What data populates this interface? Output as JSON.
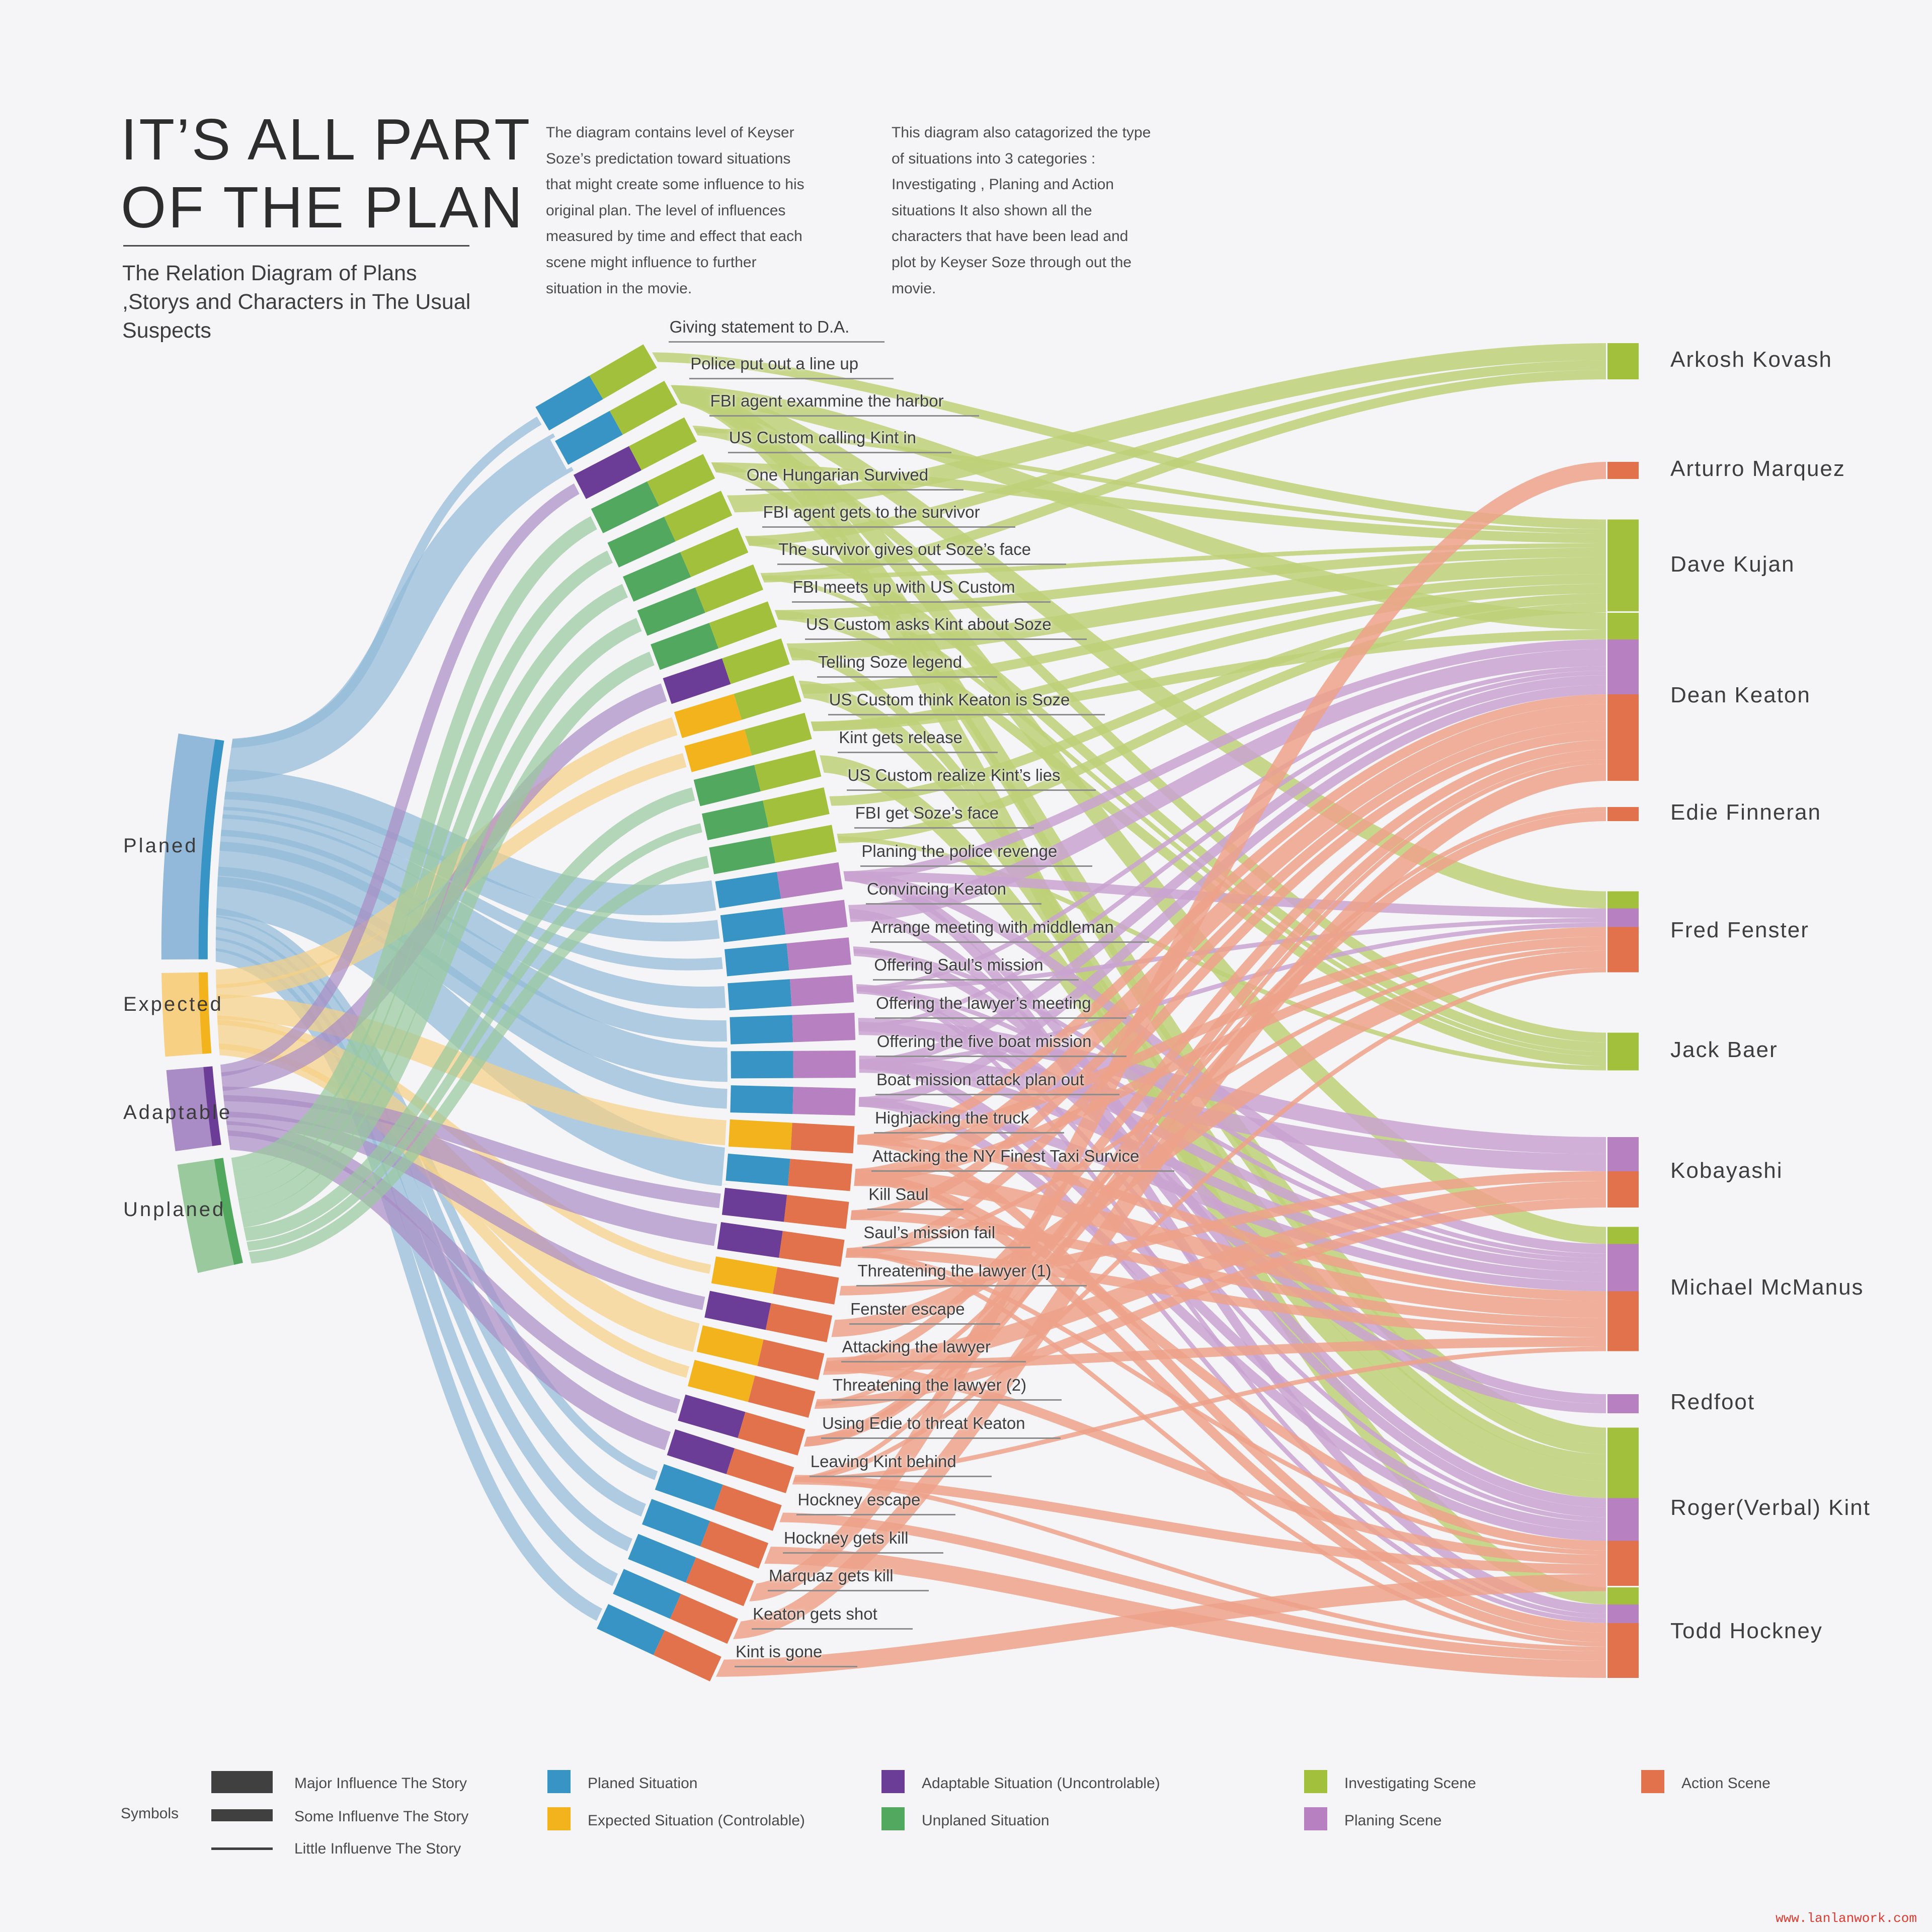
{
  "title": {
    "line1": "IT’S ALL PART",
    "line2": "OF THE PLAN"
  },
  "subtitle": "The Relation Diagram of Plans ,Storys and Characters in The Usual Suspects",
  "intro_paragraphs": [
    "The diagram contains level of Keyser Soze’s predictation toward situations that might create some influence to his original plan. The level of influences measured by time and effect that each scene might influence to further situation in the movie.",
    "This diagram also catagorized the type of situations into 3 categories : Investigating , Planing and Action situations It also shown all the characters that have been lead and plot by Keyser Soze through out the movie."
  ],
  "watermark": "www.lanlanwork.com",
  "legend": {
    "symbols_label": "Symbols"
  },
  "influence_levels": [
    {
      "id": "major",
      "label": "Major Influence The Story"
    },
    {
      "id": "some",
      "label": "Some Influenve The Story"
    },
    {
      "id": "little",
      "label": "Little Influenve  The Story"
    }
  ],
  "plans": [
    {
      "id": "planed",
      "label": "Planed",
      "legend_label": "Planed Situation",
      "color": "#3794c4",
      "flow": "#92b9d9",
      "accent": "#1f7fae"
    },
    {
      "id": "expected",
      "label": "Expected",
      "legend_label": "Expected Situation (Controlable)",
      "color": "#f3b31c",
      "flow": "#f7d084",
      "accent": "#e09c0a"
    },
    {
      "id": "adaptable",
      "label": "Adaptable",
      "legend_label": "Adaptable Situation (Uncontrolable)",
      "color": "#6b3d97",
      "flow": "#a98cc5",
      "accent": "#542e7d"
    },
    {
      "id": "unplaned",
      "label": "Unplaned",
      "legend_label": "Unplaned Situation",
      "color": "#53a85f",
      "flow": "#99c99d",
      "accent": "#3f8f4a"
    }
  ],
  "scene_types": [
    {
      "id": "investigating",
      "legend_label": "Investigating Scene",
      "color": "#a3c03d",
      "flow": "#bdd178"
    },
    {
      "id": "planing",
      "legend_label": "Planing Scene",
      "color": "#b780c1",
      "flow": "#caa3d1"
    },
    {
      "id": "action",
      "legend_label": "Action Scene",
      "color": "#e2724b",
      "flow": "#eda289"
    }
  ],
  "characters": [
    {
      "name": "Arkosh Kovash"
    },
    {
      "name": "Arturro Marquez"
    },
    {
      "name": "Dave Kujan"
    },
    {
      "name": "Dean Keaton"
    },
    {
      "name": "Edie Finneran"
    },
    {
      "name": "Fred Fenster"
    },
    {
      "name": "Jack Baer"
    },
    {
      "name": "Kobayashi"
    },
    {
      "name": "Michael McManus"
    },
    {
      "name": "Redfoot"
    },
    {
      "name": "Roger(Verbal) Kint"
    },
    {
      "name": "Todd Hockney"
    }
  ],
  "scenes": [
    {
      "label": "Giving statement to D.A.",
      "plan": "planed",
      "type": "investigating",
      "links": [
        {
          "to": "Dave Kujan",
          "weight": "some"
        }
      ]
    },
    {
      "label": "Police put out a line up",
      "plan": "planed",
      "type": "investigating",
      "links": [
        {
          "to": "Dean Keaton",
          "weight": "major"
        },
        {
          "to": "Michael McManus",
          "weight": "major"
        },
        {
          "to": "Fred Fenster",
          "weight": "major"
        },
        {
          "to": "Todd Hockney",
          "weight": "major"
        },
        {
          "to": "Roger(Verbal) Kint",
          "weight": "major"
        }
      ]
    },
    {
      "label": "FBI agent exammine the harbor",
      "plan": "adaptable",
      "type": "investigating",
      "links": [
        {
          "to": "Jack Baer",
          "weight": "some"
        },
        {
          "to": "Dave Kujan",
          "weight": "little"
        }
      ]
    },
    {
      "label": "US Custom calling Kint in",
      "plan": "unplaned",
      "type": "investigating",
      "links": [
        {
          "to": "Dave Kujan",
          "weight": "some"
        },
        {
          "to": "Roger(Verbal) Kint",
          "weight": "some"
        }
      ]
    },
    {
      "label": "One Hungarian Survived",
      "plan": "unplaned",
      "type": "investigating",
      "links": [
        {
          "to": "Arkosh Kovash",
          "weight": "major"
        }
      ]
    },
    {
      "label": "FBI agent gets to the survivor",
      "plan": "unplaned",
      "type": "investigating",
      "links": [
        {
          "to": "Arkosh Kovash",
          "weight": "some"
        },
        {
          "to": "Jack Baer",
          "weight": "some"
        }
      ]
    },
    {
      "label": "The survivor gives out Soze’s face",
      "plan": "unplaned",
      "type": "investigating",
      "links": [
        {
          "to": "Arkosh Kovash",
          "weight": "some"
        },
        {
          "to": "Dave Kujan",
          "weight": "little"
        },
        {
          "to": "Jack Baer",
          "weight": "little"
        }
      ]
    },
    {
      "label": "FBI meets up with US Custom",
      "plan": "unplaned",
      "type": "investigating",
      "links": [
        {
          "to": "Dave Kujan",
          "weight": "some"
        },
        {
          "to": "Jack Baer",
          "weight": "some"
        }
      ]
    },
    {
      "label": "US Custom asks Kint about Soze",
      "plan": "adaptable",
      "type": "investigating",
      "links": [
        {
          "to": "Dave Kujan",
          "weight": "major"
        },
        {
          "to": "Roger(Verbal) Kint",
          "weight": "some"
        }
      ]
    },
    {
      "label": "Telling Soze legend",
      "plan": "expected",
      "type": "investigating",
      "links": [
        {
          "to": "Dave Kujan",
          "weight": "some"
        },
        {
          "to": "Roger(Verbal) Kint",
          "weight": "major"
        }
      ]
    },
    {
      "label": "US Custom think Keaton is Soze",
      "plan": "expected",
      "type": "investigating",
      "links": [
        {
          "to": "Dave Kujan",
          "weight": "some"
        },
        {
          "to": "Dean Keaton",
          "weight": "some"
        }
      ]
    },
    {
      "label": "Kint gets release",
      "plan": "unplaned",
      "type": "investigating",
      "links": [
        {
          "to": "Roger(Verbal) Kint",
          "weight": "major"
        }
      ]
    },
    {
      "label": "US Custom realize Kint’s lies",
      "plan": "unplaned",
      "type": "investigating",
      "links": [
        {
          "to": "Dave Kujan",
          "weight": "some"
        }
      ]
    },
    {
      "label": "FBI get Soze’s face",
      "plan": "unplaned",
      "type": "investigating",
      "links": [
        {
          "to": "Dave Kujan",
          "weight": "some"
        },
        {
          "to": "Jack Baer",
          "weight": "little"
        }
      ]
    },
    {
      "label": "Planing the police revenge",
      "plan": "planed",
      "type": "planing",
      "links": [
        {
          "to": "Dean Keaton",
          "weight": "some"
        },
        {
          "to": "Michael McManus",
          "weight": "some"
        },
        {
          "to": "Fred Fenster",
          "weight": "some"
        },
        {
          "to": "Todd Hockney",
          "weight": "some"
        },
        {
          "to": "Roger(Verbal) Kint",
          "weight": "some"
        }
      ]
    },
    {
      "label": "Convincing Keaton",
      "plan": "planed",
      "type": "planing",
      "links": [
        {
          "to": "Dean Keaton",
          "weight": "major"
        },
        {
          "to": "Roger(Verbal) Kint",
          "weight": "some"
        }
      ]
    },
    {
      "label": "Arrange meeting with middleman",
      "plan": "planed",
      "type": "planing",
      "links": [
        {
          "to": "Redfoot",
          "weight": "some"
        },
        {
          "to": "Michael McManus",
          "weight": "little"
        }
      ]
    },
    {
      "label": "Offering Saul’s mission",
      "plan": "planed",
      "type": "planing",
      "links": [
        {
          "to": "Redfoot",
          "weight": "some"
        },
        {
          "to": "Dean Keaton",
          "weight": "little"
        },
        {
          "to": "Michael McManus",
          "weight": "little"
        },
        {
          "to": "Fred Fenster",
          "weight": "little"
        },
        {
          "to": "Todd Hockney",
          "weight": "little"
        },
        {
          "to": "Roger(Verbal) Kint",
          "weight": "little"
        }
      ]
    },
    {
      "label": "Offering the lawyer’s meeting",
      "plan": "planed",
      "type": "planing",
      "links": [
        {
          "to": "Kobayashi",
          "weight": "major"
        },
        {
          "to": "Dean Keaton",
          "weight": "little"
        },
        {
          "to": "Michael McManus",
          "weight": "some"
        }
      ]
    },
    {
      "label": "Offering the five boat mission",
      "plan": "planed",
      "type": "planing",
      "links": [
        {
          "to": "Kobayashi",
          "weight": "major"
        },
        {
          "to": "Dean Keaton",
          "weight": "some"
        },
        {
          "to": "Michael McManus",
          "weight": "some"
        },
        {
          "to": "Fred Fenster",
          "weight": "little"
        },
        {
          "to": "Todd Hockney",
          "weight": "little"
        },
        {
          "to": "Roger(Verbal) Kint",
          "weight": "some"
        }
      ]
    },
    {
      "label": "Boat mission attack plan out",
      "plan": "planed",
      "type": "planing",
      "links": [
        {
          "to": "Dean Keaton",
          "weight": "some"
        },
        {
          "to": "Michael McManus",
          "weight": "some"
        },
        {
          "to": "Roger(Verbal) Kint",
          "weight": "some"
        }
      ]
    },
    {
      "label": "Highjacking the truck",
      "plan": "expected",
      "type": "action",
      "links": [
        {
          "to": "Dean Keaton",
          "weight": "some"
        },
        {
          "to": "Michael McManus",
          "weight": "some"
        },
        {
          "to": "Fred Fenster",
          "weight": "some"
        },
        {
          "to": "Todd Hockney",
          "weight": "some"
        }
      ]
    },
    {
      "label": "Attacking the NY Finest Taxi Survice",
      "plan": "planed",
      "type": "action",
      "links": [
        {
          "to": "Dean Keaton",
          "weight": "major"
        },
        {
          "to": "Michael McManus",
          "weight": "major"
        },
        {
          "to": "Fred Fenster",
          "weight": "some"
        },
        {
          "to": "Todd Hockney",
          "weight": "some"
        },
        {
          "to": "Roger(Verbal) Kint",
          "weight": "some"
        }
      ]
    },
    {
      "label": "Kill Saul",
      "plan": "adaptable",
      "type": "action",
      "links": [
        {
          "to": "Michael McManus",
          "weight": "some"
        },
        {
          "to": "Dean Keaton",
          "weight": "some"
        }
      ]
    },
    {
      "label": "Saul’s mission fail",
      "plan": "adaptable",
      "type": "action",
      "links": [
        {
          "to": "Dean Keaton",
          "weight": "some"
        },
        {
          "to": "Michael McManus",
          "weight": "some"
        },
        {
          "to": "Fred Fenster",
          "weight": "little"
        },
        {
          "to": "Todd Hockney",
          "weight": "little"
        },
        {
          "to": "Roger(Verbal) Kint",
          "weight": "little"
        }
      ]
    },
    {
      "label": "Threatening the lawyer (1)",
      "plan": "expected",
      "type": "action",
      "links": [
        {
          "to": "Kobayashi",
          "weight": "some"
        }
      ]
    },
    {
      "label": "Fenster escape",
      "plan": "adaptable",
      "type": "action",
      "links": [
        {
          "to": "Fred Fenster",
          "weight": "major"
        }
      ]
    },
    {
      "label": "Attacking the lawyer",
      "plan": "expected",
      "type": "action",
      "links": [
        {
          "to": "Kobayashi",
          "weight": "major"
        },
        {
          "to": "Dean Keaton",
          "weight": "some"
        },
        {
          "to": "Michael McManus",
          "weight": "some"
        },
        {
          "to": "Roger(Verbal) Kint",
          "weight": "some"
        }
      ]
    },
    {
      "label": "Threatening the lawyer (2)",
      "plan": "expected",
      "type": "action",
      "links": [
        {
          "to": "Kobayashi",
          "weight": "some"
        },
        {
          "to": "Edie Finneran",
          "weight": "little"
        }
      ]
    },
    {
      "label": "Using Edie to threat Keaton",
      "plan": "adaptable",
      "type": "action",
      "links": [
        {
          "to": "Edie Finneran",
          "weight": "some"
        },
        {
          "to": "Dean Keaton",
          "weight": "some"
        }
      ]
    },
    {
      "label": "Leaving Kint behind",
      "plan": "adaptable",
      "type": "action",
      "links": [
        {
          "to": "Roger(Verbal) Kint",
          "weight": "some"
        },
        {
          "to": "Dean Keaton",
          "weight": "little"
        },
        {
          "to": "Michael McManus",
          "weight": "little"
        },
        {
          "to": "Fred Fenster",
          "weight": "little"
        },
        {
          "to": "Todd Hockney",
          "weight": "little"
        }
      ]
    },
    {
      "label": "Hockney escape",
      "plan": "planed",
      "type": "action",
      "links": [
        {
          "to": "Todd Hockney",
          "weight": "some"
        }
      ]
    },
    {
      "label": "Hockney gets kill",
      "plan": "planed",
      "type": "action",
      "links": [
        {
          "to": "Todd Hockney",
          "weight": "major"
        }
      ]
    },
    {
      "label": "Marquaz gets kill",
      "plan": "planed",
      "type": "action",
      "links": [
        {
          "to": "Arturro Marquez",
          "weight": "major"
        }
      ]
    },
    {
      "label": "Keaton gets shot",
      "plan": "planed",
      "type": "action",
      "links": [
        {
          "to": "Dean Keaton",
          "weight": "major"
        }
      ]
    },
    {
      "label": "Kint is gone",
      "plan": "planed",
      "type": "action",
      "links": [
        {
          "to": "Roger(Verbal) Kint",
          "weight": "major"
        }
      ]
    }
  ]
}
